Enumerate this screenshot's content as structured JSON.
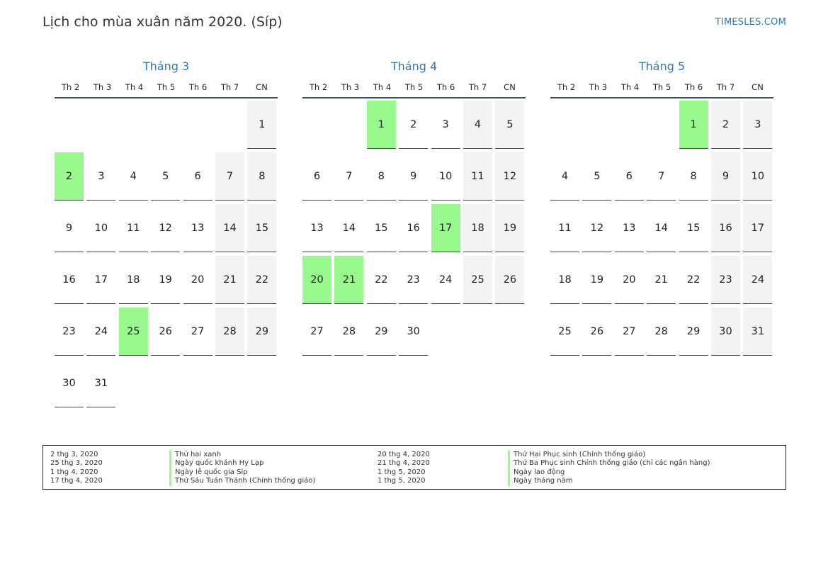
{
  "header": {
    "title": "Lịch cho mùa xuân năm 2020. (Síp)",
    "site": "TIMESLES.COM"
  },
  "colors": {
    "accent": "#2f79b5",
    "holiday": "#98f98c",
    "weekend": "#f3f3f3"
  },
  "weekdays": [
    "Th 2",
    "Th 3",
    "Th 4",
    "Th 5",
    "Th 6",
    "Th 7",
    "CN"
  ],
  "months": [
    {
      "title": "Tháng 3",
      "first_weekday": 6,
      "days": 31,
      "holidays": [
        2,
        25
      ]
    },
    {
      "title": "Tháng 4",
      "first_weekday": 2,
      "days": 30,
      "holidays": [
        1,
        17,
        20,
        21
      ]
    },
    {
      "title": "Tháng 5",
      "first_weekday": 4,
      "days": 31,
      "holidays": [
        1
      ]
    }
  ],
  "legend": [
    {
      "date": "2 thg 3, 2020",
      "name": "Thứ hai xanh"
    },
    {
      "date": "25 thg 3, 2020",
      "name": "Ngày quốc khánh Hy Lạp"
    },
    {
      "date": "1 thg 4, 2020",
      "name": "Ngày lễ quốc gia Síp"
    },
    {
      "date": "17 thg 4, 2020",
      "name": "Thứ Sáu Tuần Thánh (Chính thống giáo)"
    },
    {
      "date": "20 thg 4, 2020",
      "name": "Thứ Hai Phục sinh (Chính thống giáo)"
    },
    {
      "date": "21 thg 4, 2020",
      "name": "Thứ Ba Phục sinh Chính thống giáo (chỉ các ngân hàng)"
    },
    {
      "date": "1 thg 5, 2020",
      "name": "Ngày lao động"
    },
    {
      "date": "1 thg 5, 2020",
      "name": "Ngày tháng năm"
    }
  ]
}
